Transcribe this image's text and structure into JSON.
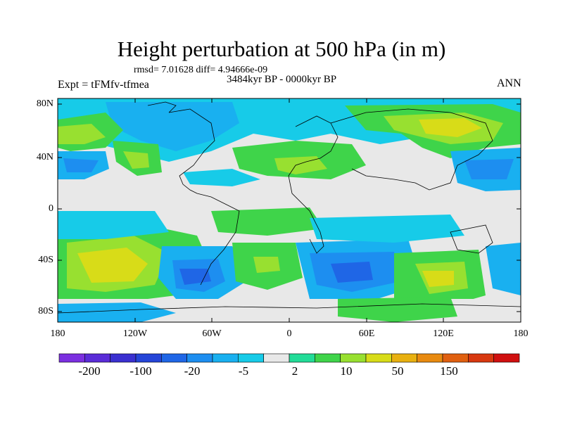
{
  "title": "Height perturbation at 500 hPa (in m)",
  "stats": "rmsd= 7.01628 diff= 4.94666e-09",
  "period": "3484kyr BP - 0000kyr BP",
  "experiment": "Expt = tFMfv-tfmea",
  "season": "ANN",
  "lat_labels": [
    "80N",
    "40N",
    "0",
    "40S",
    "80S"
  ],
  "lon_labels": [
    "180",
    "120W",
    "60W",
    "0",
    "60E",
    "120E",
    "180"
  ],
  "colorbar": {
    "colors": [
      "#7b2fe0",
      "#5a2cd8",
      "#3a30d0",
      "#2545d8",
      "#1f66e6",
      "#1d8ef0",
      "#19b0f0",
      "#17cbe8",
      "#e8e8e8",
      "#22dc98",
      "#3fd44a",
      "#98e030",
      "#d8dc18",
      "#e8b010",
      "#e88a10",
      "#e06010",
      "#d83810",
      "#d01010"
    ],
    "labels": [
      "-200",
      "-100",
      "-20",
      "-5",
      "2",
      "10",
      "50",
      "150"
    ]
  },
  "icons": [
    "world-coastline-map"
  ]
}
